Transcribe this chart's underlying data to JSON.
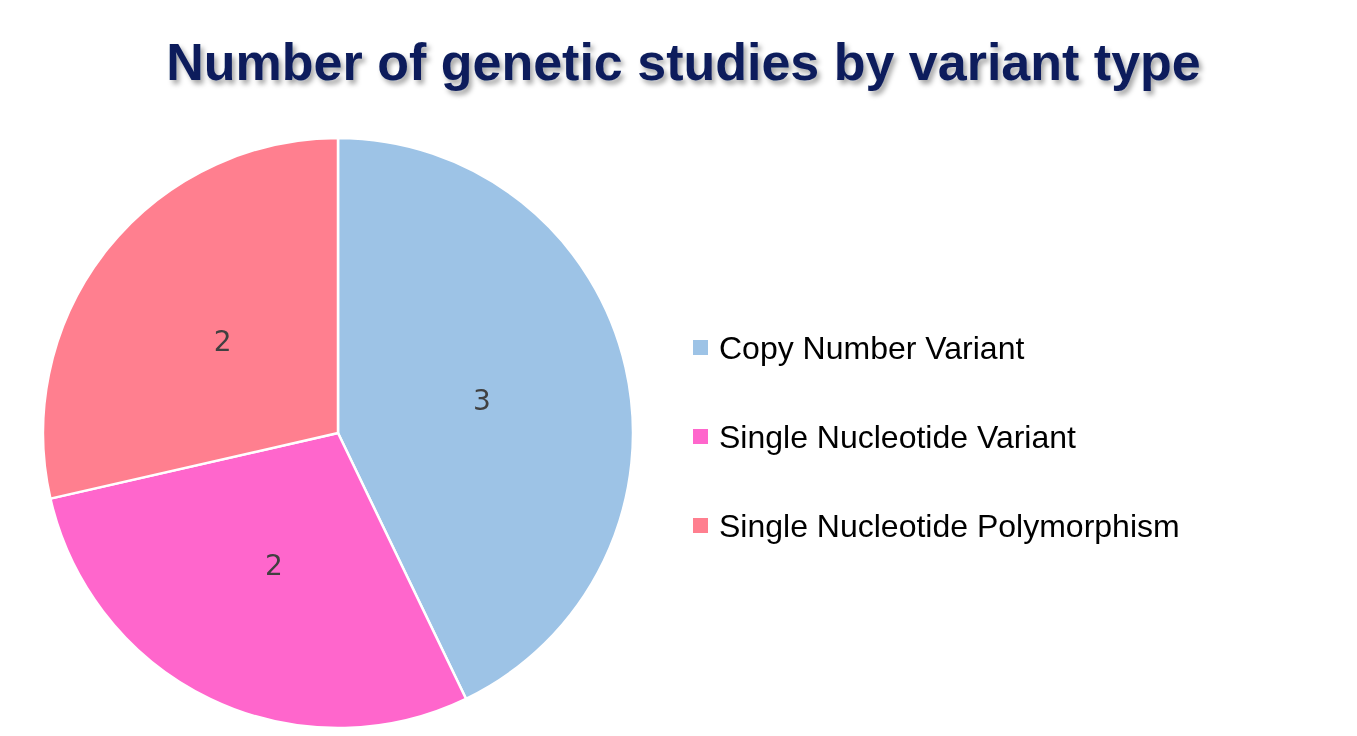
{
  "chart_data": {
    "type": "pie",
    "title": "Number of genetic studies by variant type",
    "categories": [
      "Copy Number Variant",
      "Single Nucleotide Variant",
      "Single Nucleotide Polymorphism"
    ],
    "values": [
      3,
      2,
      2
    ],
    "colors": [
      "#9dc3e6",
      "#ff66cc",
      "#ff7f8f"
    ],
    "data_labels": true,
    "legend": "right"
  }
}
